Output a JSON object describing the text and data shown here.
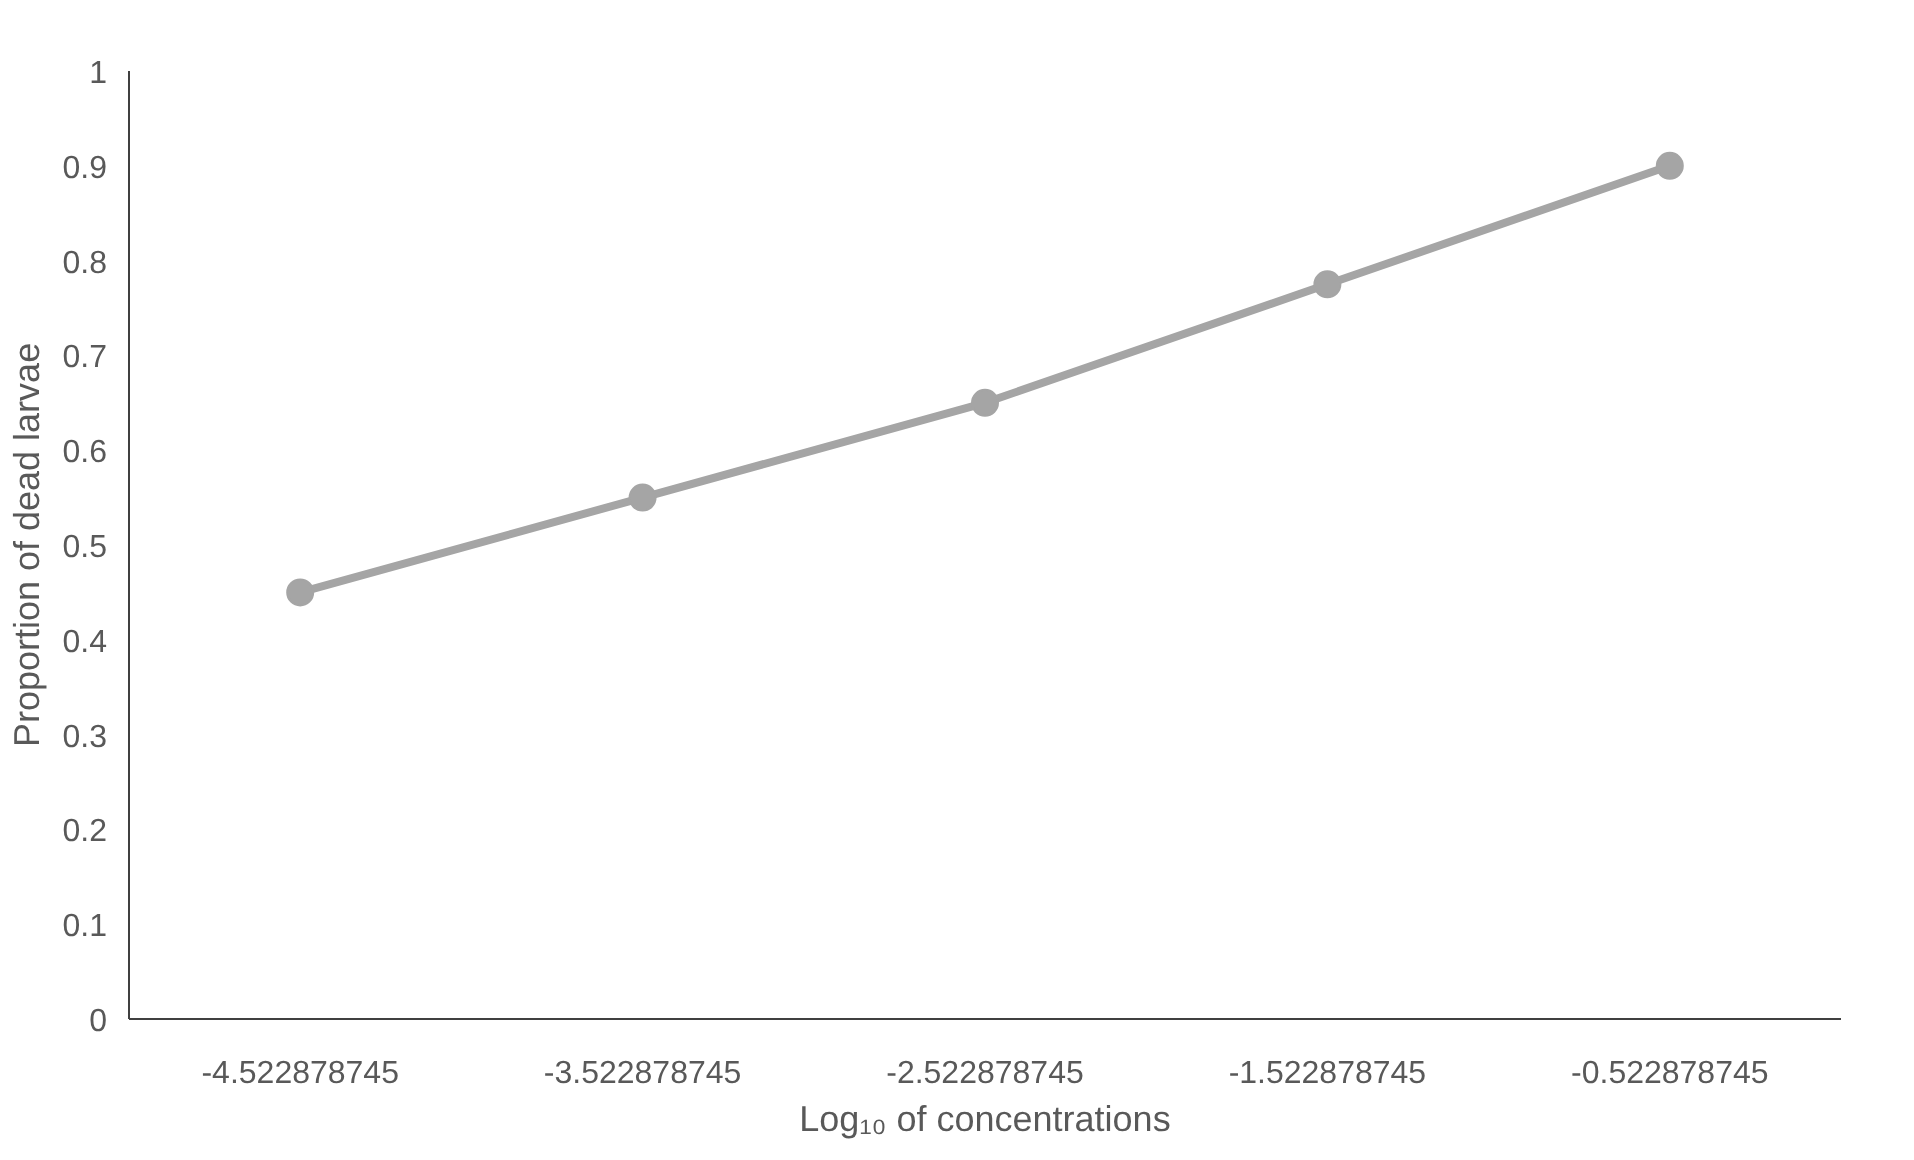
{
  "chart_data": {
    "type": "line",
    "xlabel": "Log₁₀ of concentrations",
    "ylabel": "Proportion of dead larvae",
    "categories": [
      "-4.522878745",
      "-3.522878745",
      "-2.522878745",
      "-1.522878745",
      "-0.522878745"
    ],
    "series": [
      {
        "color": "#a5a5a5",
        "values": [
          0.45,
          0.55,
          0.65,
          0.775,
          0.9
        ]
      }
    ],
    "ylim": [
      0,
      1
    ],
    "yticks": [
      0,
      0.1,
      0.2,
      0.3,
      0.4,
      0.5,
      0.6,
      0.7,
      0.8,
      0.9,
      1
    ],
    "grid": false,
    "marker": "circle",
    "line_style": "solid"
  }
}
